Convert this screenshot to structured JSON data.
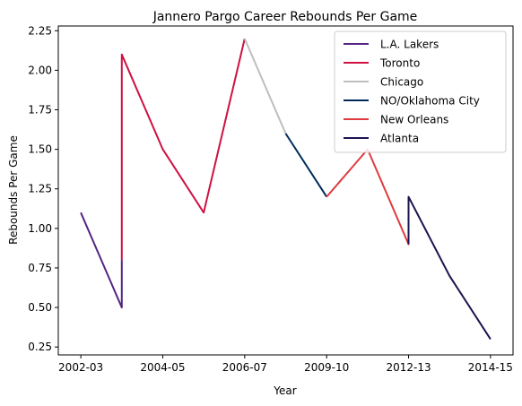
{
  "chart_data": {
    "type": "line",
    "title": "Jannero Pargo Career Rebounds Per Game",
    "xlabel": "Year",
    "ylabel": "Rebounds Per Game",
    "x_ticks": [
      "2002-03",
      "2004-05",
      "2006-07",
      "2009-10",
      "2012-13",
      "2014-15"
    ],
    "y_ticks": [
      "0.25",
      "0.50",
      "0.75",
      "1.00",
      "1.25",
      "1.50",
      "1.75",
      "2.00",
      "2.25"
    ],
    "ylim": [
      0.2,
      2.28
    ],
    "xlim": [
      -0.55,
      10.55
    ],
    "grid": false,
    "legend_position": "top-right",
    "series": [
      {
        "name": "L.A. Lakers",
        "color": "#552583",
        "points": [
          [
            0,
            1.1
          ],
          [
            1,
            0.5
          ],
          [
            1,
            0.8
          ]
        ]
      },
      {
        "name": "Toronto",
        "color": "#CE1141",
        "points": [
          [
            1,
            0.8
          ],
          [
            1,
            2.1
          ],
          [
            2,
            1.5
          ],
          [
            3,
            1.1
          ],
          [
            4,
            2.2
          ]
        ]
      },
      {
        "name": "Chicago",
        "color": "#BEBEBE",
        "points": [
          [
            4,
            2.2
          ],
          [
            5,
            1.6
          ]
        ]
      },
      {
        "name": "NO/Oklahoma City",
        "color": "#002B5C",
        "points": [
          [
            5,
            1.6
          ],
          [
            6,
            1.2
          ]
        ]
      },
      {
        "name": "New Orleans",
        "color": "#E03A3E",
        "points": [
          [
            6,
            1.2
          ],
          [
            7,
            1.5
          ],
          [
            8,
            0.9
          ],
          [
            8,
            1.2
          ]
        ]
      },
      {
        "name": "Atlanta",
        "color": "#1A1450",
        "points": [
          [
            8,
            0.9
          ],
          [
            8,
            1.2
          ],
          [
            9,
            0.7
          ],
          [
            10,
            0.3
          ]
        ]
      }
    ]
  }
}
